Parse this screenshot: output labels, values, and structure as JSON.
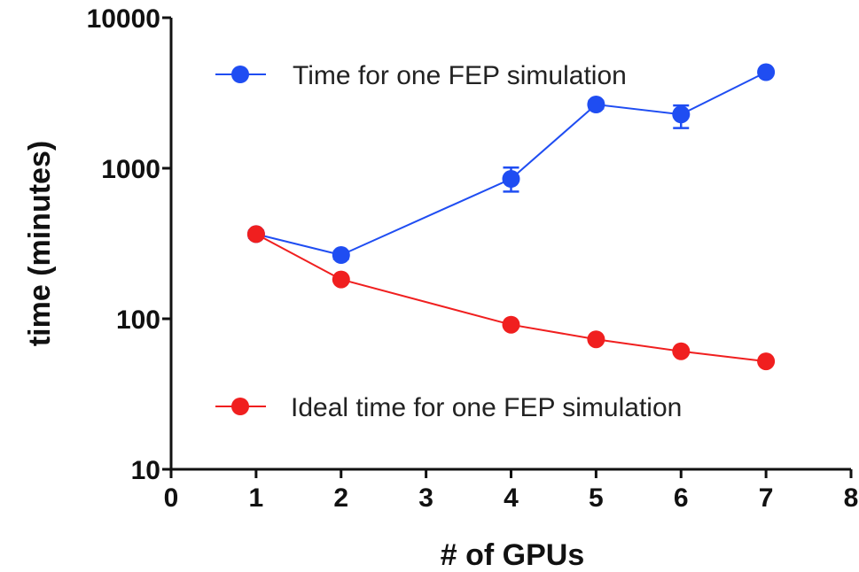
{
  "chart_data": {
    "type": "line",
    "title": "",
    "xlabel": "# of GPUs",
    "ylabel": "time (minutes)",
    "xlim": [
      0,
      8
    ],
    "ylim": [
      10,
      10000
    ],
    "yscale": "log",
    "xticks": [
      0,
      1,
      2,
      3,
      4,
      5,
      6,
      7,
      8
    ],
    "yticks": [
      10,
      100,
      1000,
      10000
    ],
    "xtick_labels": [
      "0",
      "1",
      "2",
      "3",
      "4",
      "5",
      "6",
      "7",
      "8"
    ],
    "ytick_labels": [
      "10",
      "100",
      "1000",
      "10000"
    ],
    "grid": false,
    "legend": "inline",
    "series": [
      {
        "name": "Time for one FEP simulation",
        "color": "#1f4df2",
        "x": [
          1,
          2,
          4,
          5,
          6,
          7
        ],
        "y": [
          365,
          265,
          850,
          2650,
          2280,
          4350
        ],
        "err_low": [
          20,
          15,
          150,
          150,
          430,
          150
        ],
        "err_high": [
          20,
          15,
          160,
          150,
          330,
          150
        ]
      },
      {
        "name": "Ideal time for one FEP simulation",
        "color": "#f01f1f",
        "x": [
          1,
          2,
          4,
          5,
          6,
          7
        ],
        "y": [
          365,
          182.5,
          91.3,
          73,
          60.8,
          52.1
        ]
      }
    ]
  }
}
